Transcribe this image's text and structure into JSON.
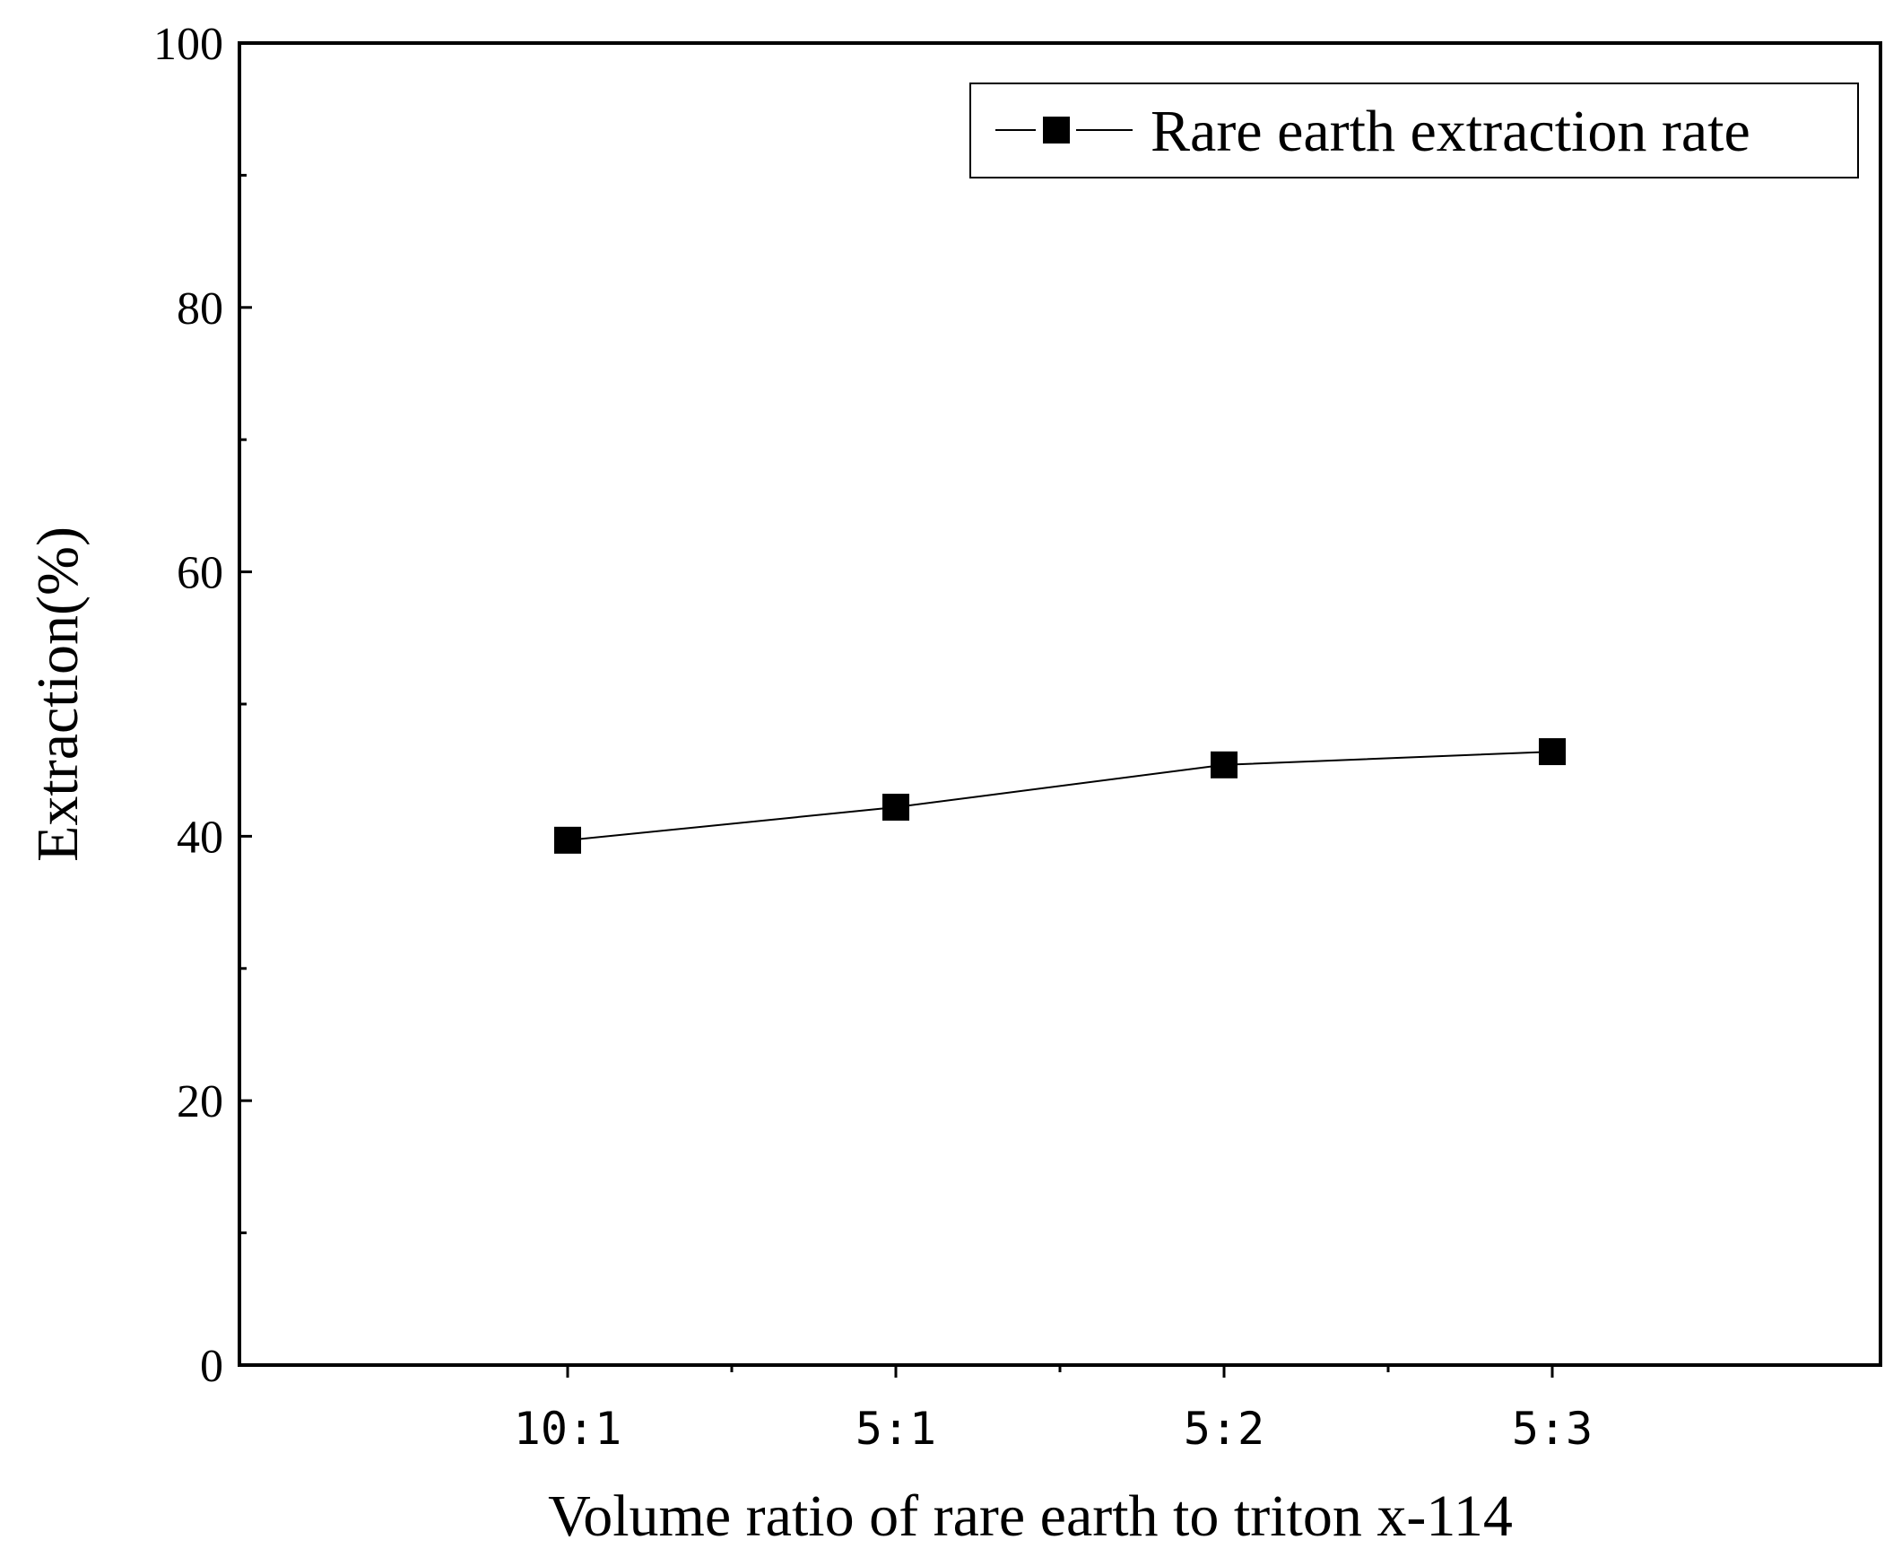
{
  "chart_data": {
    "type": "line",
    "title": "",
    "xlabel": "Volume ratio of rare earth to triton x-114",
    "ylabel": "Extraction(%)",
    "categories": [
      "10:1",
      "5:1",
      "5:2",
      "5:3"
    ],
    "series": [
      {
        "name": "Rare earth extraction rate",
        "values": [
          39.7,
          42.2,
          45.4,
          46.4
        ],
        "marker": "square",
        "color": "#000000"
      }
    ],
    "ylim": [
      0,
      100
    ],
    "yticks": [
      0,
      20,
      40,
      60,
      80,
      100
    ],
    "yticks_minor": [
      10,
      30,
      50,
      70,
      90
    ],
    "grid": false,
    "legend_position": "top-right"
  }
}
